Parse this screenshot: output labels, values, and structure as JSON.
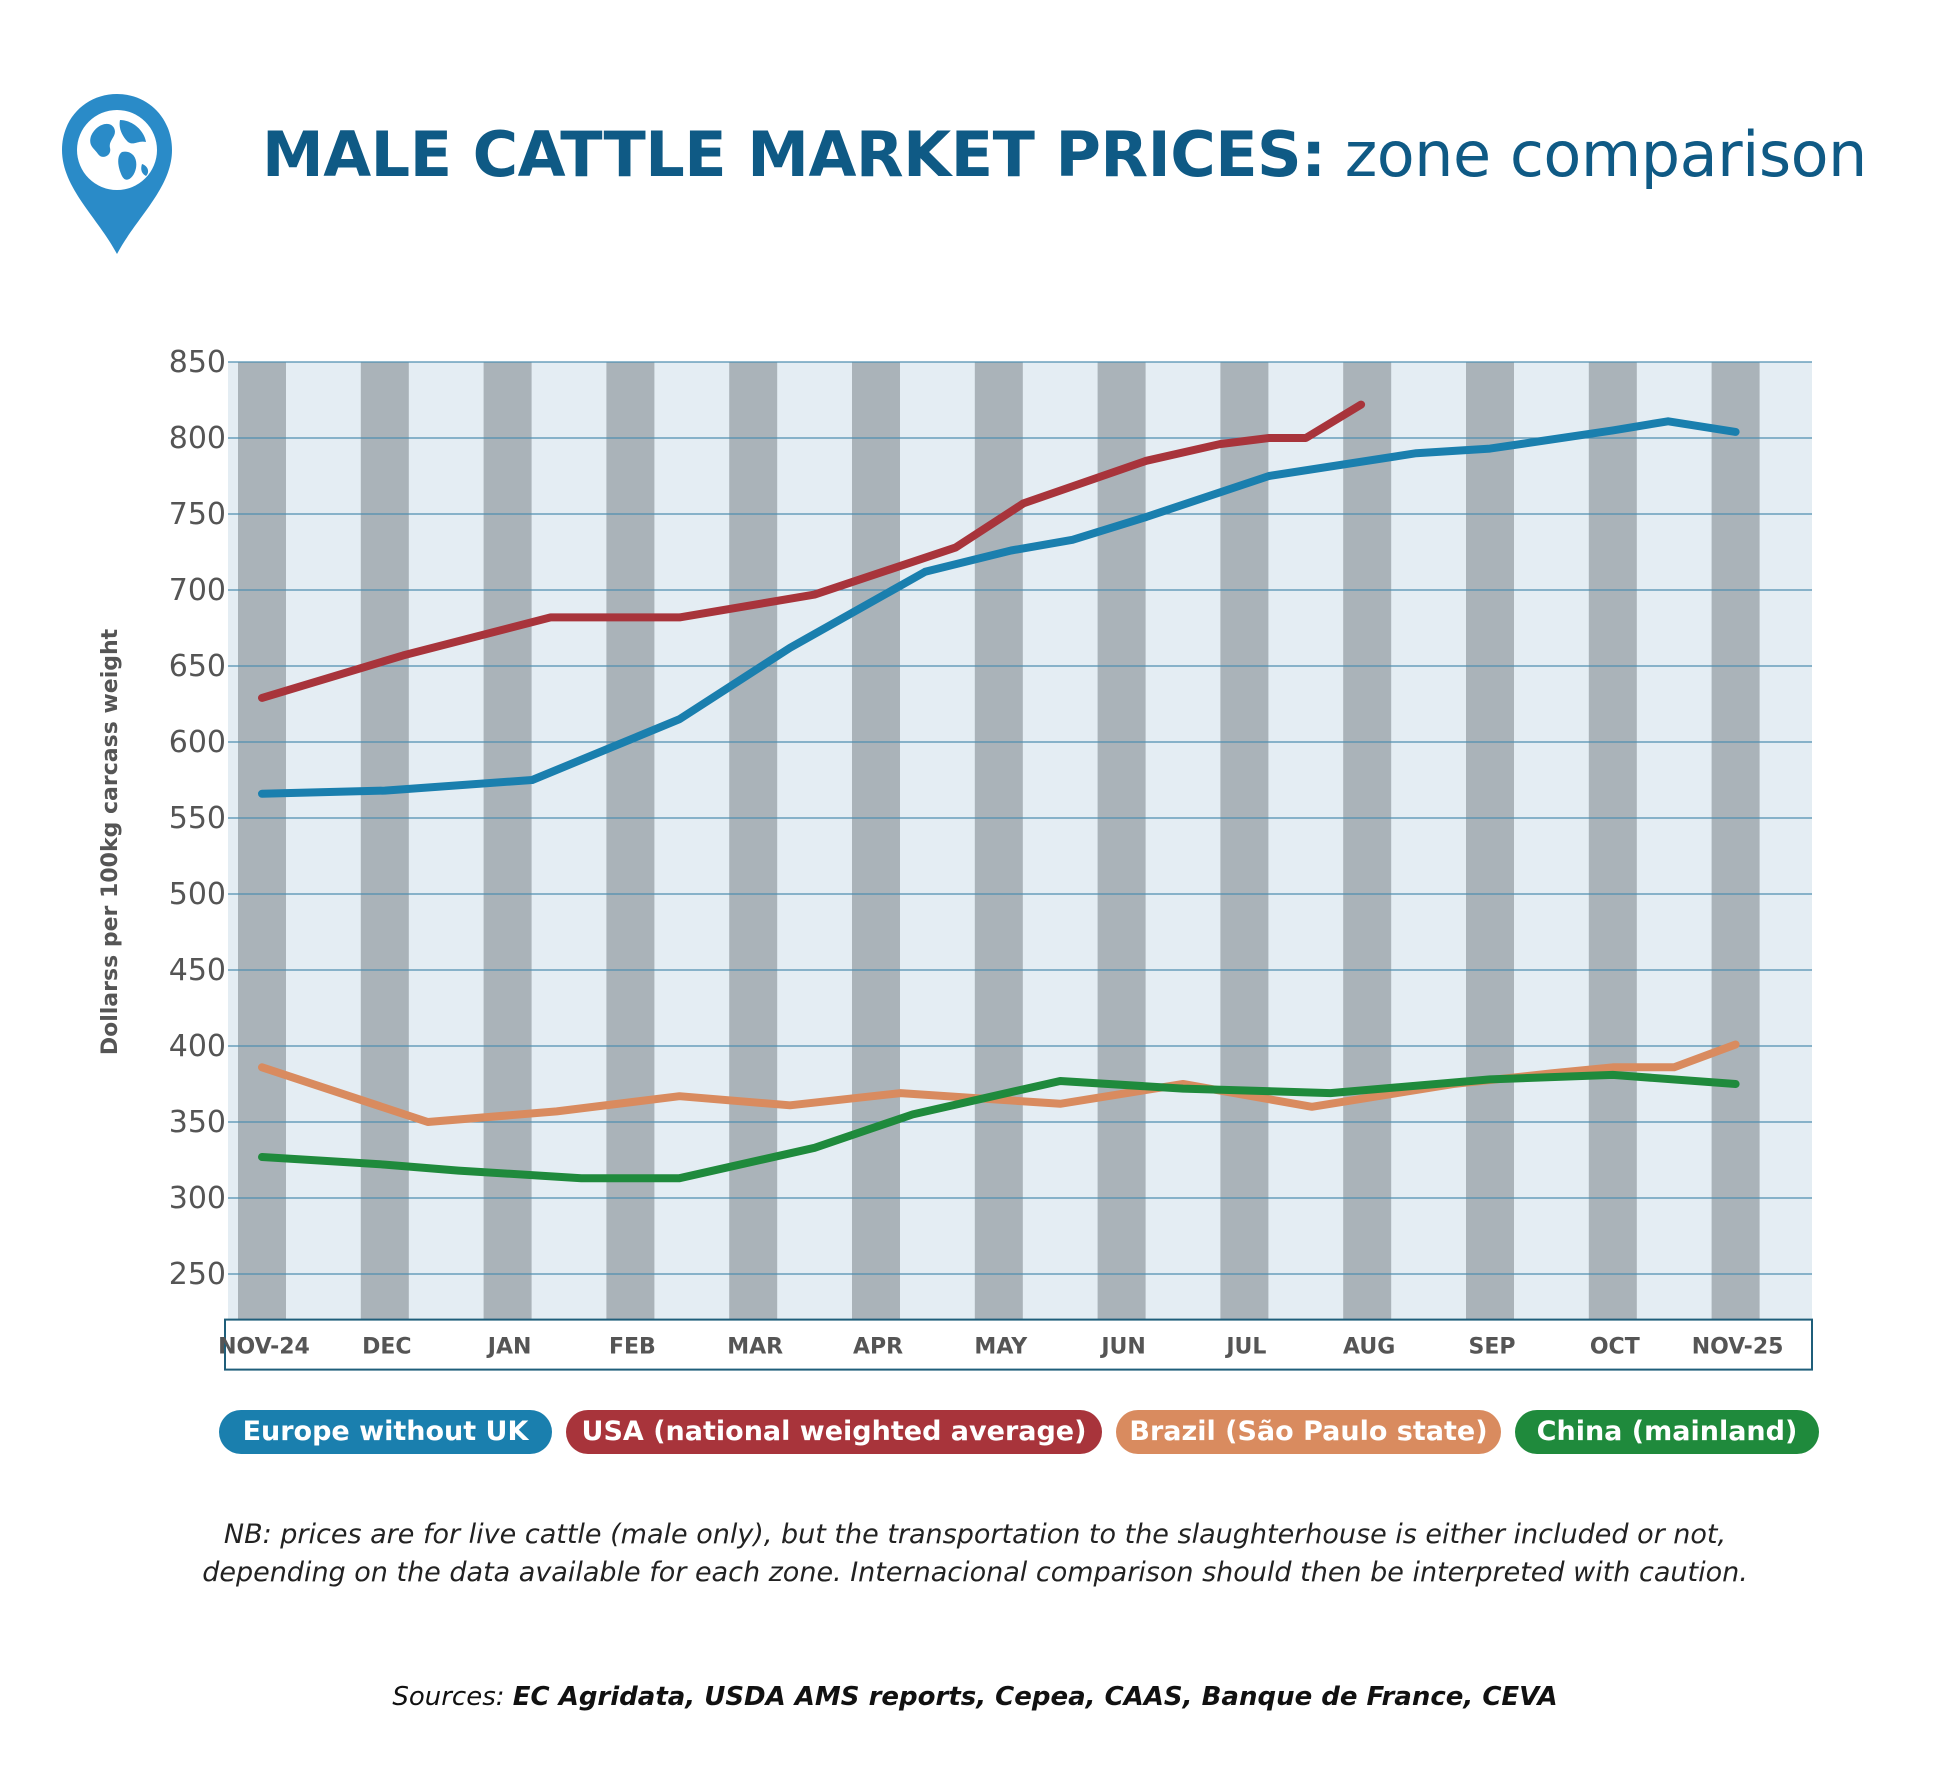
{
  "header": {
    "title_bold": "MALE CATTLE MARKET PRICES:",
    "title_rest": " zone comparison",
    "icon": "globe-pin-icon"
  },
  "chart_data": {
    "type": "line",
    "title": "MALE CATTLE MARKET PRICES: zone comparison",
    "ylabel": "Dollarss per 100kg carcass weight",
    "xlabel": "",
    "ylim": [
      220,
      850
    ],
    "yticks": [
      250,
      300,
      350,
      400,
      450,
      500,
      550,
      600,
      650,
      700,
      750,
      800,
      850
    ],
    "categories": [
      "NOV-24",
      "DEC",
      "JAN",
      "FEB",
      "MAR",
      "APR",
      "MAY",
      "JUN",
      "JUL",
      "AUG",
      "SEP",
      "OCT",
      "NOV-25"
    ],
    "series": [
      {
        "name": "Europe without UK",
        "color": "#1a7fae",
        "points": [
          [
            0,
            566
          ],
          [
            1,
            568
          ],
          [
            2.2,
            575
          ],
          [
            3.4,
            615
          ],
          [
            4.3,
            662
          ],
          [
            5.4,
            712
          ],
          [
            6.1,
            726
          ],
          [
            6.6,
            733
          ],
          [
            7.2,
            748
          ],
          [
            8.2,
            775
          ],
          [
            9.4,
            790
          ],
          [
            10,
            793
          ],
          [
            11,
            805
          ],
          [
            11.45,
            811
          ],
          [
            12,
            804
          ]
        ]
      },
      {
        "name": "USA (national weighted average)",
        "color": "#a8343b",
        "points": [
          [
            0,
            629
          ],
          [
            1.15,
            657
          ],
          [
            2.35,
            682
          ],
          [
            3,
            682
          ],
          [
            3.4,
            682
          ],
          [
            4.5,
            697
          ],
          [
            5.65,
            728
          ],
          [
            6.2,
            757
          ],
          [
            7.2,
            785
          ],
          [
            7.8,
            796
          ],
          [
            8.2,
            800
          ],
          [
            8.5,
            800
          ],
          [
            8.95,
            822
          ]
        ]
      },
      {
        "name": "Brazil (São Paulo state)",
        "color": "#d98b5f",
        "points": [
          [
            0,
            386
          ],
          [
            1.35,
            350
          ],
          [
            2.4,
            357
          ],
          [
            3.4,
            367
          ],
          [
            4.3,
            361
          ],
          [
            5.2,
            369
          ],
          [
            6.5,
            362
          ],
          [
            7.5,
            375
          ],
          [
            8.55,
            360
          ],
          [
            9.7,
            375
          ],
          [
            10.5,
            382
          ],
          [
            11,
            386
          ],
          [
            11.5,
            386
          ],
          [
            12,
            401
          ]
        ]
      },
      {
        "name": "China (mainland)",
        "color": "#1f8a3c",
        "points": [
          [
            0,
            327
          ],
          [
            1,
            322
          ],
          [
            1.6,
            318
          ],
          [
            2.6,
            313
          ],
          [
            3.4,
            313
          ],
          [
            4.5,
            333
          ],
          [
            5.3,
            355
          ],
          [
            6.5,
            377
          ],
          [
            7.5,
            372
          ],
          [
            8.7,
            369
          ],
          [
            10,
            378
          ],
          [
            11,
            381
          ],
          [
            12,
            375
          ]
        ]
      }
    ]
  },
  "legend": [
    {
      "label": "Europe without UK",
      "color": "#1a7fae"
    },
    {
      "label": "USA (national weighted average)",
      "color": "#a8343b"
    },
    {
      "label": "Brazil (São Paulo state)",
      "color": "#d98b5f"
    },
    {
      "label": "China (mainland)",
      "color": "#1f8a3c"
    }
  ],
  "note": {
    "line1": "NB: prices are for live cattle (male only), but the transportation to the slaughterhouse is either included or not,",
    "line2": "depending on the data available for each zone. Internacional comparison should then be interpreted with caution."
  },
  "sources": {
    "prefix": "Sources: ",
    "list": "EC Agridata, USDA AMS reports, Cepea, CAAS, Banque de France, CEVA"
  }
}
